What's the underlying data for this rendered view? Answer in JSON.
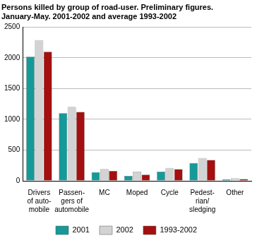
{
  "chart_data": {
    "type": "bar",
    "title": [
      "Persons killed by group of road-user. Preliminary figures.",
      "January-May. 2001-2002 and average 1993-2002"
    ],
    "categories": [
      [
        "Drivers",
        "of auto-",
        "mobile"
      ],
      [
        "Passen-",
        "gers of",
        "automobile"
      ],
      "MC",
      "Moped",
      "Cycle",
      [
        "Pedest-",
        "rian/",
        "sledging"
      ],
      "Other"
    ],
    "series": [
      {
        "name": "2001",
        "color": "#169999",
        "values": [
          2020,
          1100,
          140,
          80,
          150,
          290,
          25
        ]
      },
      {
        "name": "2002",
        "color": "#d3d3d3",
        "values": [
          2290,
          1200,
          190,
          150,
          210,
          370,
          40
        ]
      },
      {
        "name": "1993-2002",
        "color": "#a3100f",
        "values": [
          2100,
          1120,
          160,
          100,
          190,
          340,
          30
        ]
      }
    ],
    "ylim": [
      0,
      2500
    ],
    "yticks": [
      0,
      500,
      1000,
      1500,
      2000,
      2500
    ],
    "grid": true,
    "legend": "bottom"
  }
}
